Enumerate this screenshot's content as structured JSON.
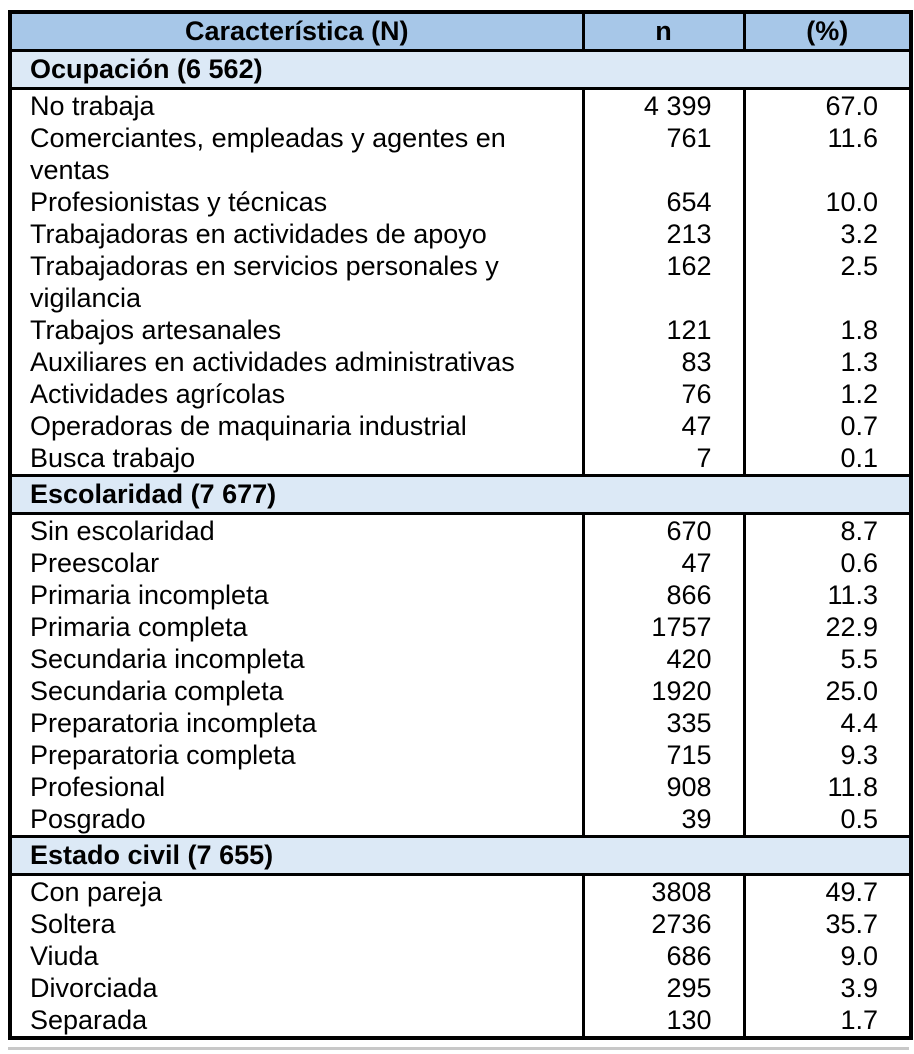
{
  "table": {
    "columns": [
      "Característica (N)",
      "n",
      "(%)"
    ],
    "sections": [
      {
        "title": "Ocupación (6 562)",
        "rows": [
          [
            "No trabaja",
            "4 399",
            "67.0"
          ],
          [
            "Comerciantes, empleadas y agentes en ventas",
            "761",
            "11.6"
          ],
          [
            "Profesionistas y técnicas",
            "654",
            "10.0"
          ],
          [
            "Trabajadoras en actividades de apoyo",
            "213",
            "3.2"
          ],
          [
            "Trabajadoras en servicios personales y vigilancia",
            "162",
            "2.5"
          ],
          [
            "Trabajos artesanales",
            "121",
            "1.8"
          ],
          [
            "Auxiliares en actividades administrativas",
            "83",
            "1.3"
          ],
          [
            "Actividades agrícolas",
            "76",
            "1.2"
          ],
          [
            "Operadoras de maquinaria industrial",
            "47",
            "0.7"
          ],
          [
            "Busca trabajo",
            "7",
            "0.1"
          ]
        ]
      },
      {
        "title": "Escolaridad (7 677)",
        "rows": [
          [
            "Sin escolaridad",
            "670",
            "8.7"
          ],
          [
            "Preescolar",
            "47",
            "0.6"
          ],
          [
            "Primaria incompleta",
            "866",
            "11.3"
          ],
          [
            "Primaria completa",
            "1757",
            "22.9"
          ],
          [
            "Secundaria incompleta",
            "420",
            "5.5"
          ],
          [
            "Secundaria completa",
            "1920",
            "25.0"
          ],
          [
            "Preparatoria incompleta",
            "335",
            "4.4"
          ],
          [
            "Preparatoria completa",
            "715",
            "9.3"
          ],
          [
            "Profesional",
            "908",
            "11.8"
          ],
          [
            "Posgrado",
            "39",
            "0.5"
          ]
        ]
      },
      {
        "title": "Estado civil (7 655)",
        "rows": [
          [
            "Con pareja",
            "3808",
            "49.7"
          ],
          [
            "Soltera",
            "2736",
            "35.7"
          ],
          [
            "Viuda",
            "686",
            "9.0"
          ],
          [
            "Divorciada",
            "295",
            "3.9"
          ],
          [
            "Separada",
            "130",
            "1.7"
          ]
        ]
      }
    ],
    "colors": {
      "header_bg": "#a7c7e8",
      "section_bg": "#dce9f6",
      "border": "#000000",
      "cutoff": "#c8c8c8"
    }
  }
}
